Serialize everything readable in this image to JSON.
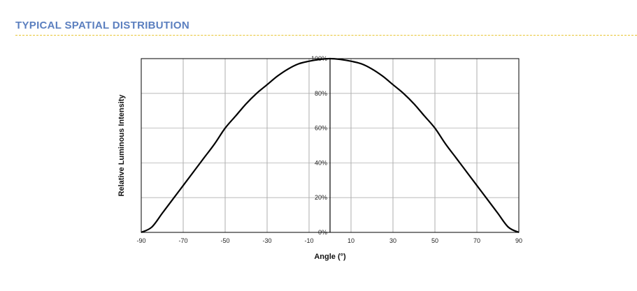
{
  "header": {
    "title": "TYPICAL SPATIAL DISTRIBUTION",
    "title_color": "#5b7fbf",
    "divider_color": "#e8c530"
  },
  "chart_data": {
    "type": "line",
    "xlabel": "Angle (°)",
    "ylabel": "Relative Luminous Intensity",
    "xlim": [
      -90,
      90
    ],
    "ylim": [
      0,
      100
    ],
    "x_ticks": [
      "-90",
      "-70",
      "-50",
      "-30",
      "-10",
      "10",
      "30",
      "50",
      "70",
      "90"
    ],
    "x_tick_values": [
      -90,
      -70,
      -50,
      -30,
      -10,
      10,
      30,
      50,
      70,
      90
    ],
    "y_ticks": [
      "0%",
      "20%",
      "40%",
      "60%",
      "80%",
      "100%"
    ],
    "y_tick_values": [
      0,
      20,
      40,
      60,
      80,
      100
    ],
    "grid": true,
    "series": [
      {
        "color": "#000000",
        "x": [
          -90,
          -85,
          -80,
          -75,
          -70,
          -65,
          -60,
          -55,
          -50,
          -45,
          -40,
          -35,
          -30,
          -25,
          -20,
          -15,
          -10,
          -5,
          0,
          5,
          10,
          15,
          20,
          25,
          30,
          35,
          40,
          45,
          50,
          55,
          60,
          65,
          70,
          75,
          80,
          85,
          90
        ],
        "values": [
          0,
          3,
          11,
          19,
          27,
          35,
          43,
          51,
          60,
          67,
          74,
          80,
          85,
          90,
          94,
          97,
          98.5,
          99.5,
          100,
          99.5,
          98.5,
          97,
          94,
          90,
          85,
          80,
          74,
          67,
          60,
          51,
          43,
          35,
          27,
          19,
          11,
          3,
          0
        ]
      }
    ]
  }
}
